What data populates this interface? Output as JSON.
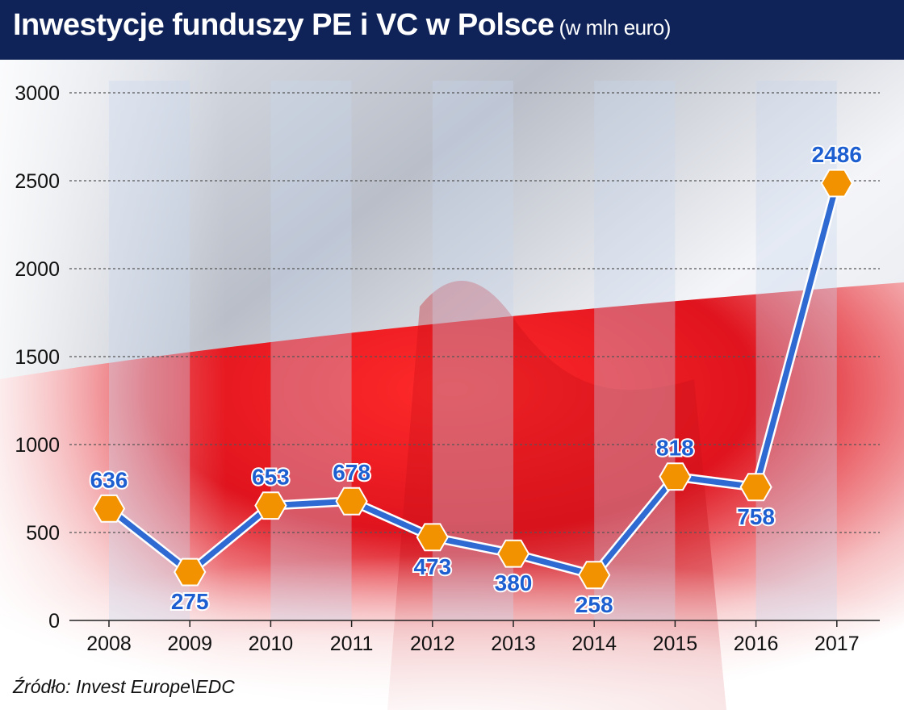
{
  "title": "Inwestycje funduszy PE i VC w Polsce",
  "subtitle": "(w mln euro)",
  "source": "Źródło: Invest Europe\\EDC",
  "chart_data": {
    "type": "line",
    "categories": [
      "2008",
      "2009",
      "2010",
      "2011",
      "2012",
      "2013",
      "2014",
      "2015",
      "2016",
      "2017"
    ],
    "values": [
      636,
      275,
      653,
      678,
      473,
      380,
      258,
      818,
      758,
      2486
    ],
    "ylim": [
      0,
      3000
    ],
    "yticks": [
      0,
      500,
      1000,
      1500,
      2000,
      2500,
      3000
    ],
    "xlabel": "",
    "ylabel": "",
    "grid": "horizontal dashed",
    "line_color": "#2f6ad3",
    "marker_color": "#f39200",
    "label_color": "#1d5fd0"
  }
}
